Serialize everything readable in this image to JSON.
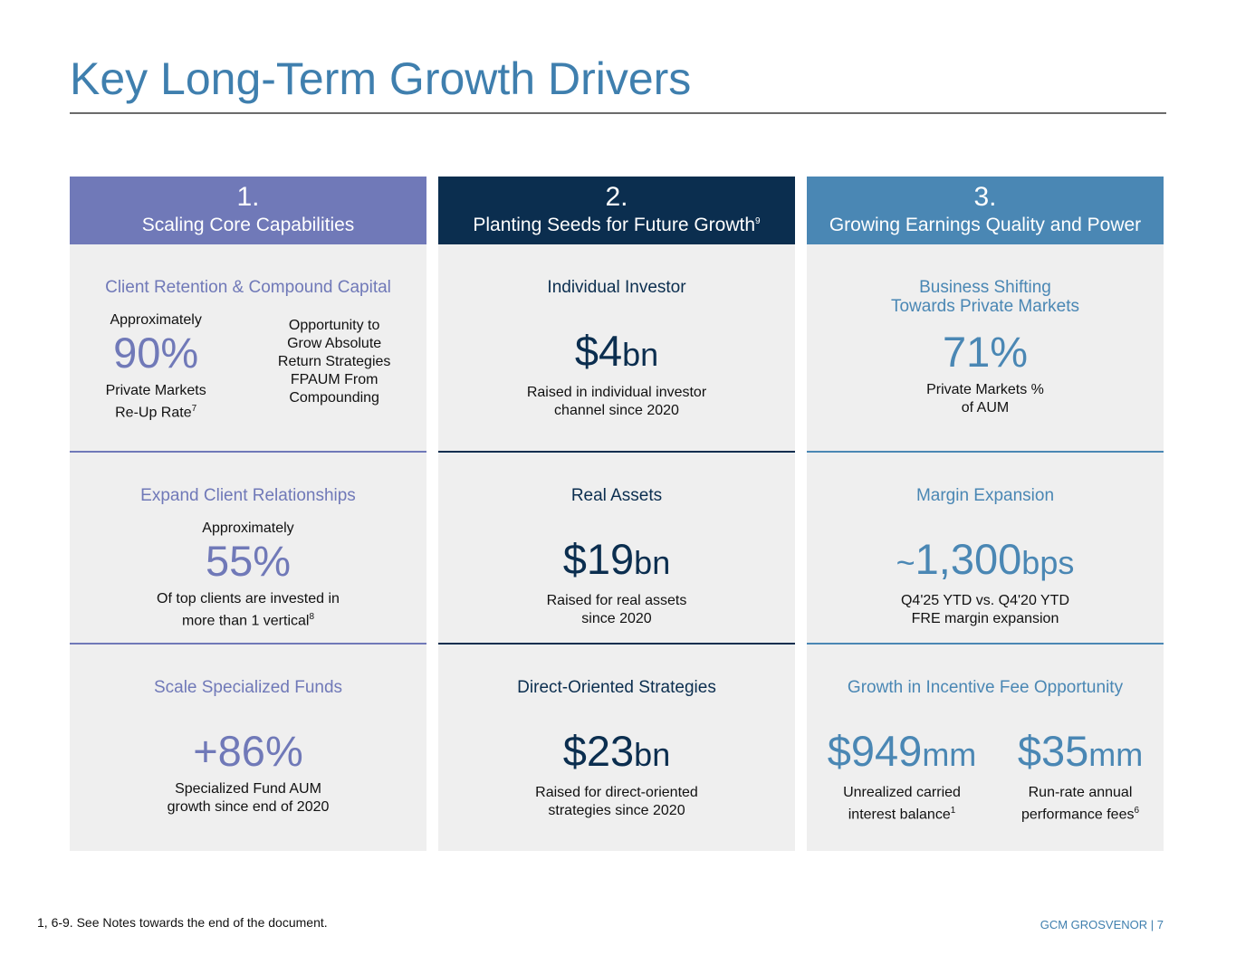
{
  "title": "Key Long-Term Growth Drivers",
  "columns": [
    {
      "number": "1.",
      "heading": "Scaling Core Capabilities",
      "sections": [
        {
          "title": [
            "Client Retention & Compound Capital"
          ],
          "items": [
            {
              "pre": "Approximately",
              "value": "90%",
              "caption": [
                "Private Markets",
                "Re-Up Rate"
              ],
              "note": "7"
            }
          ],
          "side": [
            "Opportunity to",
            "Grow Absolute",
            "Return Strategies",
            "FPAUM From",
            "Compounding"
          ]
        },
        {
          "title": [
            "Expand Client Relationships"
          ],
          "items": [
            {
              "pre": "Approximately",
              "value": "55%",
              "caption": [
                "Of top clients are invested in",
                "more than 1 vertical"
              ],
              "note": "8"
            }
          ]
        },
        {
          "title": [
            "Scale Specialized Funds"
          ],
          "items": [
            {
              "value": "+86%",
              "caption": [
                "Specialized Fund AUM",
                "growth since end of 2020"
              ]
            }
          ]
        }
      ]
    },
    {
      "number": "2.",
      "heading": "Planting Seeds for Future Growth",
      "heading_note": "9",
      "sections": [
        {
          "title": [
            "Individual Investor"
          ],
          "items": [
            {
              "value": "$4",
              "unit": "bn",
              "caption": [
                "Raised in individual investor",
                "channel since 2020"
              ]
            }
          ]
        },
        {
          "title": [
            "Real Assets"
          ],
          "items": [
            {
              "value": "$19",
              "unit": "bn",
              "caption": [
                "Raised for real assets",
                "since 2020"
              ]
            }
          ]
        },
        {
          "title": [
            "Direct-Oriented Strategies"
          ],
          "items": [
            {
              "value": "$23",
              "unit": "bn",
              "caption": [
                "Raised for direct-oriented",
                "strategies since 2020"
              ]
            }
          ]
        }
      ]
    },
    {
      "number": "3.",
      "heading": "Growing Earnings Quality and Power",
      "sections": [
        {
          "title": [
            "Business Shifting",
            "Towards Private Markets"
          ],
          "items": [
            {
              "value": "71%",
              "caption": [
                "Private Markets %",
                "of AUM"
              ]
            }
          ]
        },
        {
          "title": [
            "Margin Expansion"
          ],
          "items": [
            {
              "lead": "~",
              "value": "1,300",
              "unit": "bps",
              "caption": [
                "Q4'25 YTD vs. Q4'20 YTD",
                "FRE margin expansion"
              ]
            }
          ]
        },
        {
          "title": [
            "Growth in Incentive Fee Opportunity"
          ],
          "items": [
            {
              "value": "$949",
              "unit": "mm",
              "caption": [
                "Unrealized carried",
                "interest balance"
              ],
              "note": "1"
            },
            {
              "value": "$35",
              "unit": "mm",
              "caption": [
                "Run-rate annual",
                "performance fees"
              ],
              "note": "6"
            }
          ]
        }
      ]
    }
  ],
  "footnote": "1, 6-9. See Notes towards the end of the document.",
  "footer": "GCM GROSVENOR | 7"
}
